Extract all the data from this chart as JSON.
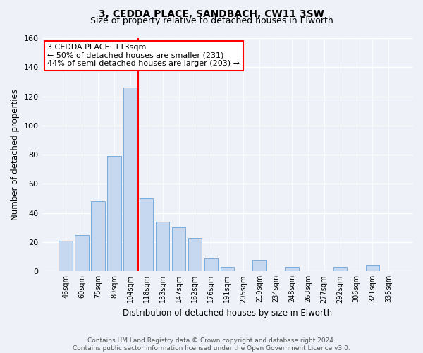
{
  "title1": "3, CEDDA PLACE, SANDBACH, CW11 3SW",
  "title2": "Size of property relative to detached houses in Elworth",
  "xlabel": "Distribution of detached houses by size in Elworth",
  "ylabel": "Number of detached properties",
  "bar_labels": [
    "46sqm",
    "60sqm",
    "75sqm",
    "89sqm",
    "104sqm",
    "118sqm",
    "133sqm",
    "147sqm",
    "162sqm",
    "176sqm",
    "191sqm",
    "205sqm",
    "219sqm",
    "234sqm",
    "248sqm",
    "263sqm",
    "277sqm",
    "292sqm",
    "306sqm",
    "321sqm",
    "335sqm"
  ],
  "bar_values": [
    21,
    25,
    48,
    79,
    126,
    50,
    34,
    30,
    23,
    9,
    3,
    0,
    8,
    0,
    3,
    0,
    0,
    3,
    0,
    4,
    0
  ],
  "bar_color": "#c5d8f0",
  "bar_edge_color": "#7aacdb",
  "vline_x_index": 4,
  "vline_color": "red",
  "annotation_title": "3 CEDDA PLACE: 113sqm",
  "annotation_line1": "← 50% of detached houses are smaller (231)",
  "annotation_line2": "44% of semi-detached houses are larger (203) →",
  "annotation_box_color": "white",
  "annotation_box_edge": "red",
  "ylim": [
    0,
    160
  ],
  "yticks": [
    0,
    20,
    40,
    60,
    80,
    100,
    120,
    140,
    160
  ],
  "footer1": "Contains HM Land Registry data © Crown copyright and database right 2024.",
  "footer2": "Contains public sector information licensed under the Open Government Licence v3.0.",
  "background_color": "#eef2f8",
  "plot_bg_color": "#eef2f8",
  "grid_color": "white",
  "title1_fontsize": 10,
  "title2_fontsize": 9
}
